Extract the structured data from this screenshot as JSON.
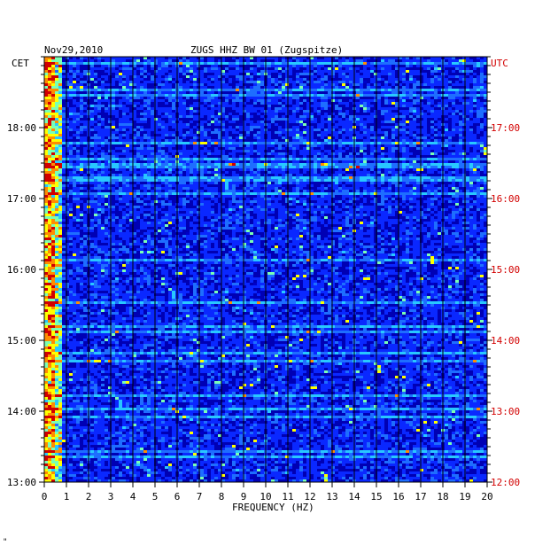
{
  "chart_data": {
    "type": "heatmap",
    "title_date": "Nov29,2010",
    "title_station": "ZUGS HHZ BW 01 (Zugspitze)",
    "xlabel": "FREQUENCY (HZ)",
    "x_ticks": [
      "0",
      "1",
      "2",
      "3",
      "4",
      "5",
      "6",
      "7",
      "8",
      "9",
      "10",
      "11",
      "12",
      "13",
      "14",
      "15",
      "16",
      "17",
      "18",
      "19",
      "20"
    ],
    "xlim": [
      0,
      20
    ],
    "left_axis_label": "CET",
    "right_axis_label": "UTC",
    "left_ticks": [
      "18:00",
      "17:00",
      "16:00",
      "15:00",
      "14:00",
      "13:00"
    ],
    "right_ticks": [
      "17:00",
      "16:00",
      "15:00",
      "14:00",
      "13:00",
      "12:00"
    ],
    "time_range_cet": [
      "13:00",
      "19:00"
    ],
    "colormap": [
      "#00007a",
      "#0000c8",
      "#0a28ff",
      "#1e6eff",
      "#28c8ff",
      "#7affb4",
      "#ffff00",
      "#ff8c00",
      "#d20000"
    ],
    "footer_mark": "\""
  },
  "colors": {
    "left_axis": "#000000",
    "right_axis": "#d20000",
    "background_plot": "#0000b4"
  }
}
